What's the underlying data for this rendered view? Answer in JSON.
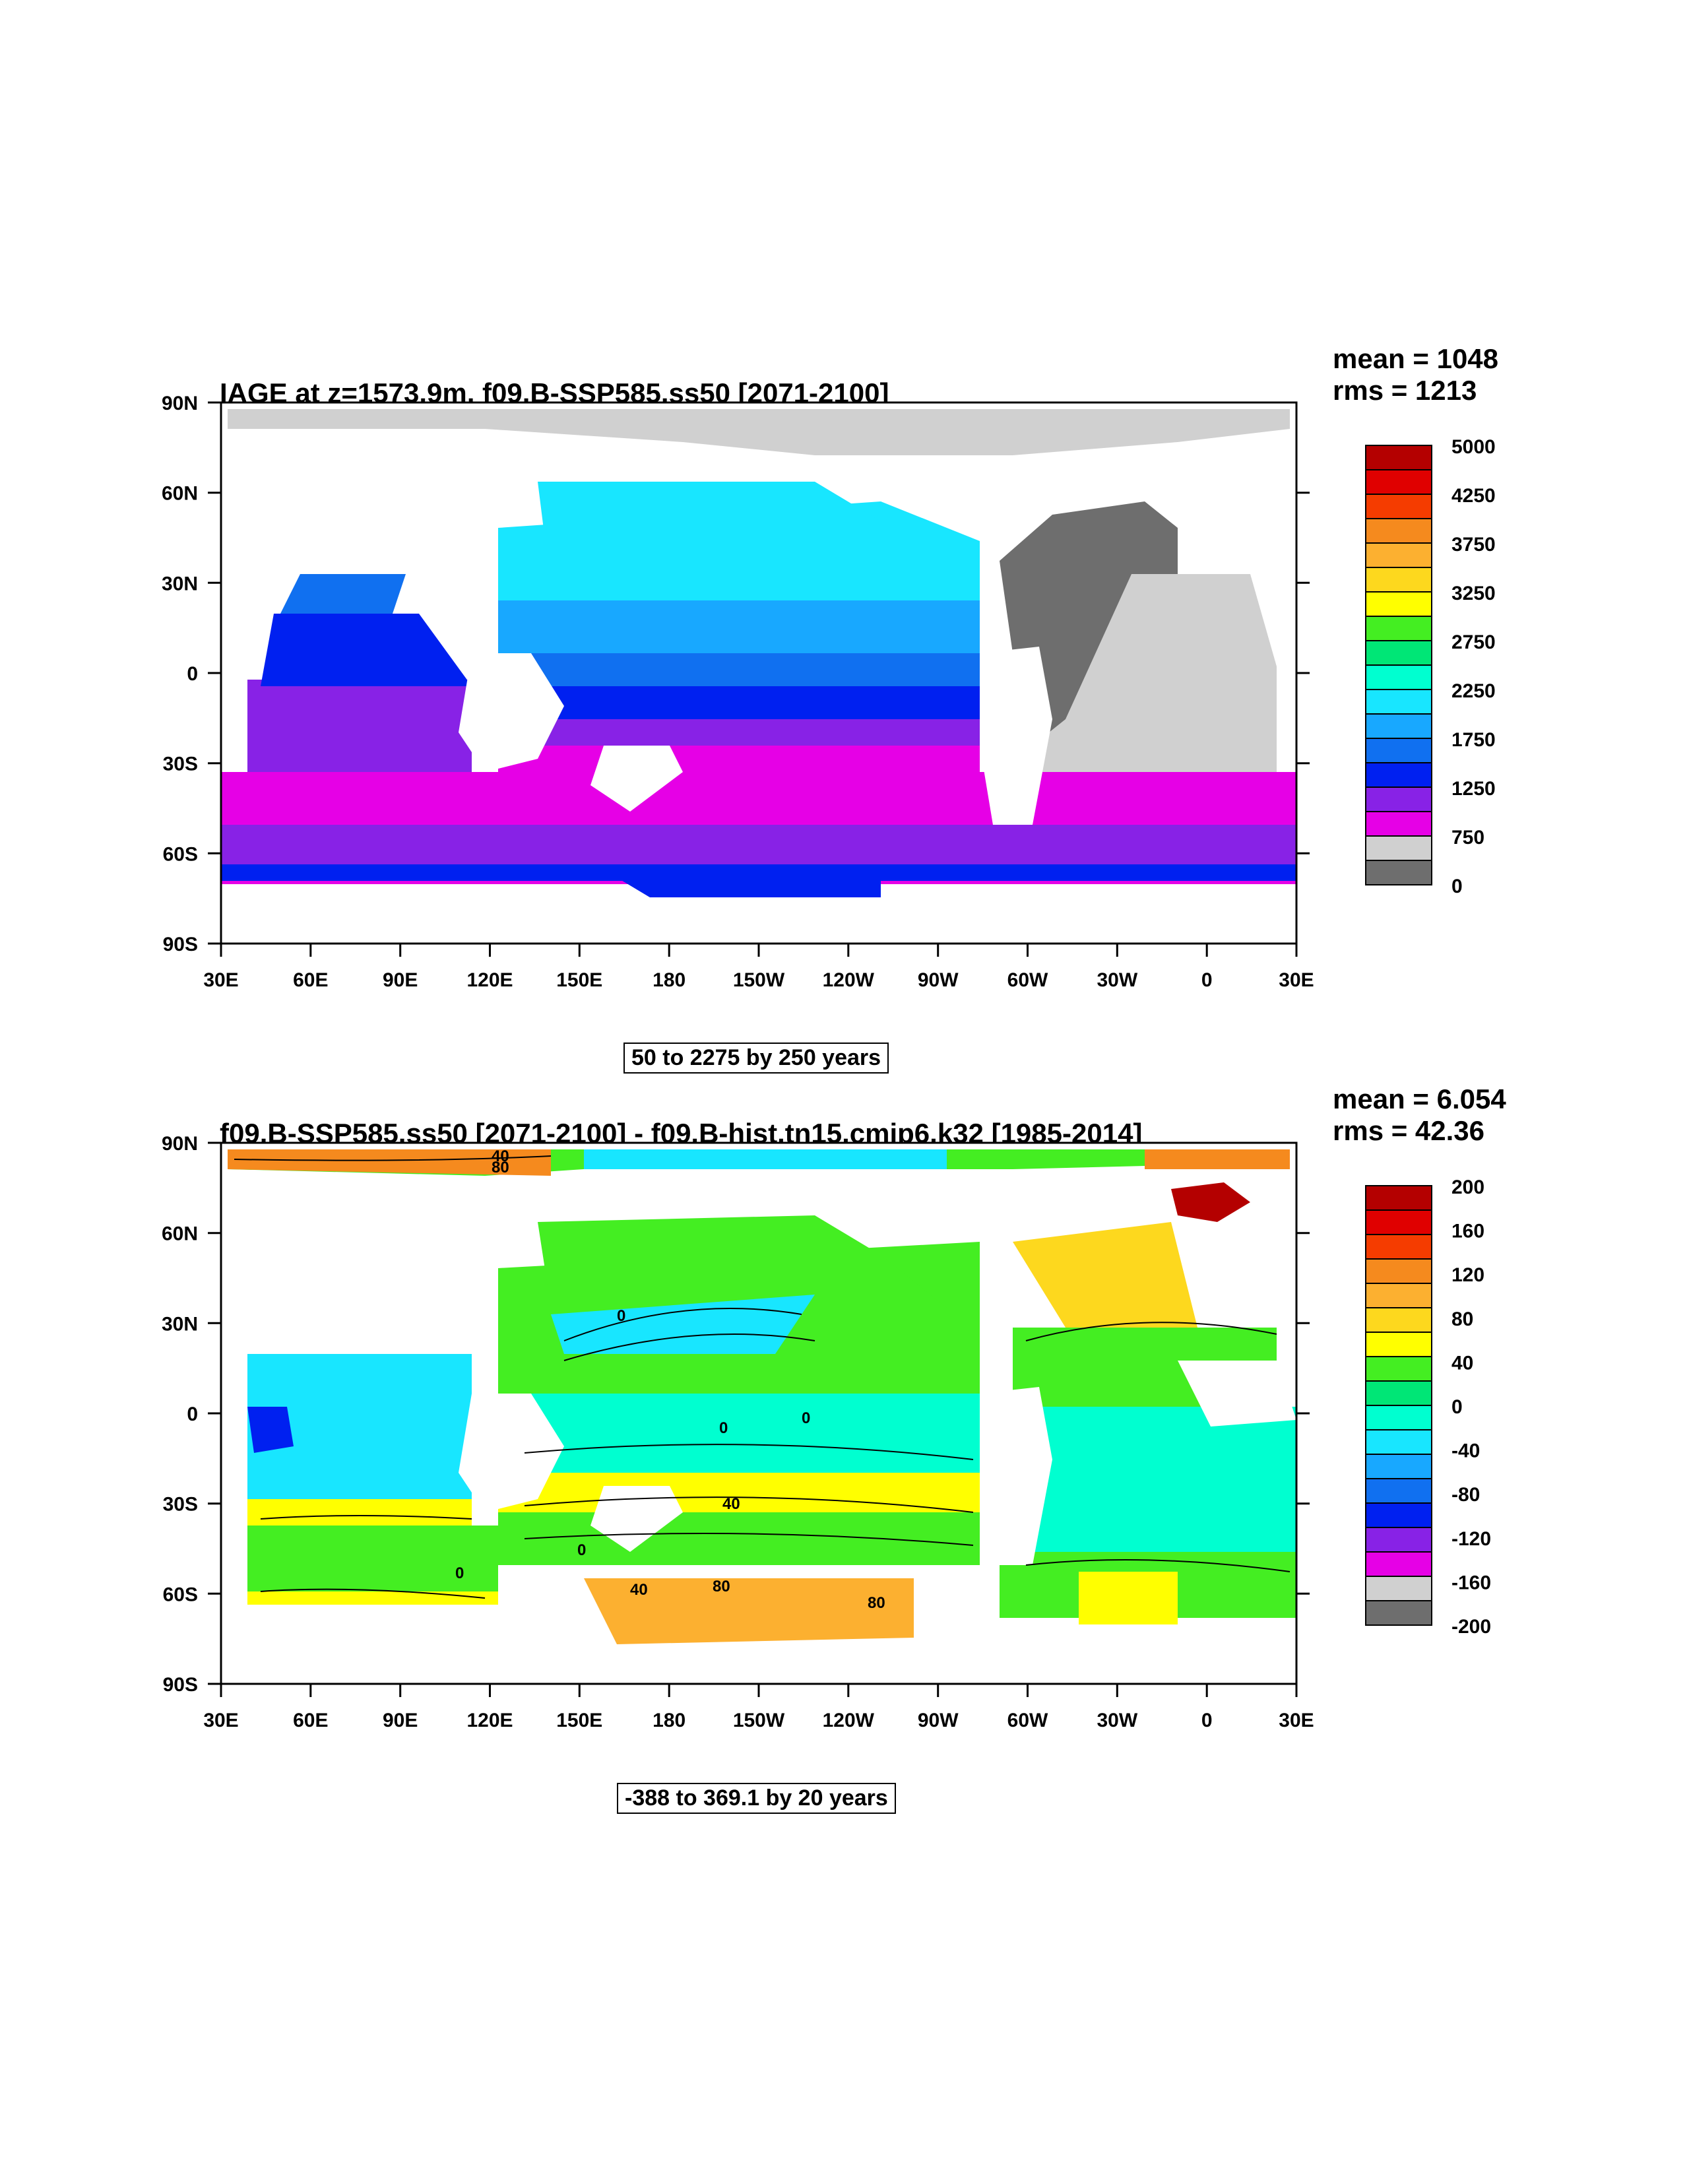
{
  "lon_labels": [
    "30E",
    "60E",
    "90E",
    "120E",
    "150E",
    "180",
    "150W",
    "120W",
    "90W",
    "60W",
    "30W",
    "0",
    "30E"
  ],
  "lat_labels": [
    "90N",
    "60N",
    "30N",
    "0",
    "30S",
    "60S",
    "90S"
  ],
  "panels": [
    {
      "title": "IAGE at z=1573.9m, f09.B-SSP585.ss50 [2071-2100]",
      "mean": "mean = 1048",
      "rms": "rms = 1213",
      "range": "50 to 2275 by 250 years",
      "colorbar_labels": [
        "5000",
        "4250",
        "3750",
        "3250",
        "2750",
        "2250",
        "1750",
        "1250",
        "750",
        "0"
      ],
      "colorbar_colors": [
        "#b40000",
        "#e00000",
        "#f53c00",
        "#f58a1e",
        "#fcb030",
        "#fdd81e",
        "#ffff00",
        "#44ee22",
        "#00e676",
        "#00ffd0",
        "#18e6ff",
        "#18a8ff",
        "#1070f0",
        "#0020f0",
        "#8822e6",
        "#e600e6",
        "#d0d0d0",
        "#6e6e6e"
      ]
    },
    {
      "title": "f09.B-SSP585.ss50 [2071-2100] - f09.B-hist.tn15.cmip6.k32 [1985-2014]",
      "mean": "mean = 6.054",
      "rms": "rms = 42.36",
      "range": "-388 to 369.1 by 20 years",
      "colorbar_labels": [
        "200",
        "160",
        "120",
        "80",
        "40",
        "0",
        "-40",
        "-80",
        "-120",
        "-160",
        "-200"
      ],
      "colorbar_colors": [
        "#b40000",
        "#e00000",
        "#f53c00",
        "#f58a1e",
        "#fcb030",
        "#fdd81e",
        "#ffff00",
        "#44ee22",
        "#00e676",
        "#00ffd0",
        "#18e6ff",
        "#18a8ff",
        "#1070f0",
        "#0020f0",
        "#8822e6",
        "#e600e6",
        "#d0d0d0",
        "#6e6e6e"
      ],
      "contour_labels": [
        "40",
        "80",
        "0",
        "0",
        "0",
        "40",
        "0",
        "40",
        "80",
        "80",
        "0"
      ]
    }
  ]
}
